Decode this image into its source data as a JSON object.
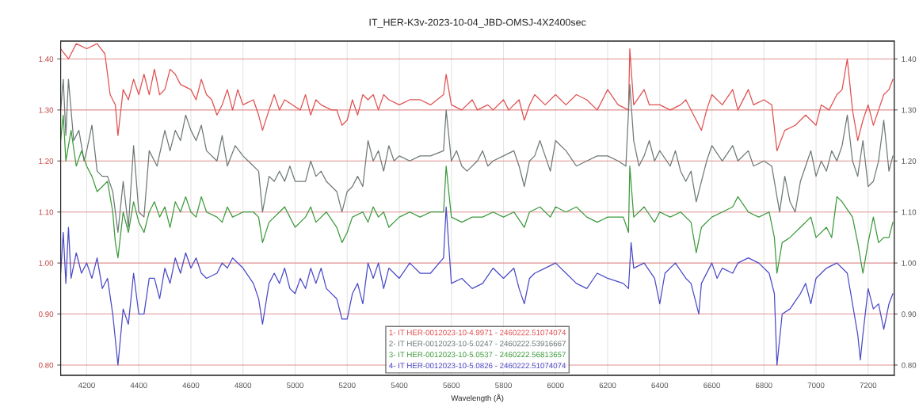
{
  "chart_data": {
    "type": "line",
    "title": "IT_HER-K3v-2023-10-04_JBD-OMSJ-4X2400sec",
    "xlabel": "Wavelength (Å)",
    "xlim": [
      4100,
      7300
    ],
    "xticks": [
      4200,
      4400,
      4600,
      4800,
      5000,
      5200,
      5400,
      5600,
      5800,
      6000,
      6200,
      6400,
      6600,
      6800,
      7000,
      7200
    ],
    "ylim": [
      0.78,
      1.435
    ],
    "yticks": [
      {
        "value": 0.8,
        "label": "0.80"
      },
      {
        "value": 0.9,
        "label": "0.90"
      },
      {
        "value": 1.0,
        "label": "1.00"
      },
      {
        "value": 1.1,
        "label": "1.10"
      },
      {
        "value": 1.2,
        "label": "1.20"
      },
      {
        "value": 1.3,
        "label": "1.30"
      },
      {
        "value": 1.4,
        "label": "1.40"
      }
    ],
    "y2lim": [
      0.78,
      1.435
    ],
    "y2ticks": [
      {
        "value": 0.8,
        "label": "0.80"
      },
      {
        "value": 0.9,
        "label": "0.90"
      },
      {
        "value": 1.0,
        "label": "1.00"
      },
      {
        "value": 1.1,
        "label": "1.10"
      },
      {
        "value": 1.2,
        "label": "1.20"
      },
      {
        "value": 1.3,
        "label": "1.30"
      },
      {
        "value": 1.4,
        "label": "1.40"
      }
    ],
    "grid": true,
    "legend": "bottom",
    "marker": "none",
    "line_style": "solid",
    "series": [
      {
        "name": "1- IT HER-0012023-10-4.9971 - 2460222.51074074",
        "color": "#e05050",
        "x": [
          4100,
          4130,
          4160,
          4200,
          4240,
          4270,
          4290,
          4310,
          4320,
          4340,
          4360,
          4380,
          4400,
          4420,
          4440,
          4460,
          4480,
          4500,
          4520,
          4540,
          4560,
          4600,
          4620,
          4640,
          4660,
          4680,
          4700,
          4720,
          4740,
          4760,
          4780,
          4800,
          4840,
          4860,
          4875,
          4900,
          4920,
          4940,
          4960,
          4990,
          5020,
          5040,
          5060,
          5080,
          5100,
          5140,
          5160,
          5180,
          5200,
          5220,
          5240,
          5260,
          5280,
          5300,
          5320,
          5340,
          5360,
          5400,
          5440,
          5480,
          5520,
          5570,
          5580,
          5600,
          5640,
          5680,
          5700,
          5740,
          5760,
          5800,
          5820,
          5860,
          5880,
          5900,
          5920,
          5960,
          6000,
          6040,
          6080,
          6120,
          6160,
          6200,
          6240,
          6280,
          6285,
          6300,
          6340,
          6360,
          6400,
          6440,
          6480,
          6500,
          6540,
          6560,
          6580,
          6600,
          6640,
          6680,
          6700,
          6740,
          6760,
          6800,
          6830,
          6850,
          6880,
          6920,
          6960,
          7000,
          7020,
          7050,
          7080,
          7100,
          7120,
          7140,
          7160,
          7180,
          7200,
          7220,
          7240,
          7260,
          7280,
          7295
        ],
        "values": [
          1.42,
          1.4,
          1.43,
          1.42,
          1.43,
          1.41,
          1.33,
          1.31,
          1.25,
          1.34,
          1.32,
          1.36,
          1.33,
          1.37,
          1.33,
          1.38,
          1.33,
          1.34,
          1.38,
          1.37,
          1.35,
          1.34,
          1.32,
          1.36,
          1.33,
          1.32,
          1.29,
          1.31,
          1.34,
          1.3,
          1.34,
          1.31,
          1.32,
          1.29,
          1.26,
          1.3,
          1.33,
          1.3,
          1.32,
          1.31,
          1.3,
          1.33,
          1.29,
          1.32,
          1.31,
          1.3,
          1.3,
          1.27,
          1.28,
          1.32,
          1.29,
          1.33,
          1.32,
          1.33,
          1.3,
          1.33,
          1.32,
          1.31,
          1.32,
          1.32,
          1.31,
          1.33,
          1.37,
          1.31,
          1.3,
          1.32,
          1.3,
          1.31,
          1.3,
          1.32,
          1.3,
          1.32,
          1.28,
          1.31,
          1.33,
          1.31,
          1.33,
          1.31,
          1.33,
          1.32,
          1.3,
          1.34,
          1.31,
          1.3,
          1.42,
          1.31,
          1.34,
          1.31,
          1.31,
          1.3,
          1.31,
          1.32,
          1.28,
          1.26,
          1.3,
          1.33,
          1.31,
          1.34,
          1.3,
          1.34,
          1.31,
          1.32,
          1.31,
          1.22,
          1.26,
          1.27,
          1.29,
          1.27,
          1.31,
          1.3,
          1.33,
          1.34,
          1.4,
          1.3,
          1.24,
          1.28,
          1.31,
          1.27,
          1.3,
          1.33,
          1.34,
          1.36
        ]
      },
      {
        "name": "2- IT HER-0012023-10-5.0247 - 2460222.53916667",
        "color": "#6e7878",
        "x": [
          4100,
          4110,
          4120,
          4130,
          4150,
          4170,
          4190,
          4200,
          4220,
          4240,
          4260,
          4280,
          4300,
          4320,
          4340,
          4360,
          4380,
          4400,
          4420,
          4440,
          4460,
          4470,
          4500,
          4520,
          4540,
          4560,
          4580,
          4600,
          4620,
          4640,
          4660,
          4700,
          4720,
          4740,
          4770,
          4800,
          4820,
          4860,
          4875,
          4900,
          4920,
          4940,
          4960,
          4980,
          5000,
          5040,
          5060,
          5080,
          5100,
          5120,
          5140,
          5160,
          5180,
          5200,
          5220,
          5240,
          5260,
          5280,
          5300,
          5320,
          5340,
          5360,
          5380,
          5400,
          5440,
          5480,
          5520,
          5570,
          5580,
          5600,
          5620,
          5640,
          5660,
          5700,
          5720,
          5740,
          5760,
          5800,
          5840,
          5860,
          5880,
          5900,
          5920,
          5940,
          5960,
          5980,
          6000,
          6040,
          6080,
          6120,
          6160,
          6200,
          6240,
          6270,
          6285,
          6300,
          6320,
          6340,
          6360,
          6380,
          6400,
          6440,
          6460,
          6480,
          6500,
          6520,
          6540,
          6560,
          6580,
          6600,
          6640,
          6680,
          6700,
          6740,
          6760,
          6800,
          6830,
          6860,
          6880,
          6900,
          6920,
          6940,
          6960,
          6980,
          7000,
          7020,
          7040,
          7060,
          7080,
          7100,
          7120,
          7140,
          7160,
          7180,
          7200,
          7220,
          7240,
          7260,
          7280,
          7295
        ],
        "values": [
          1.3,
          1.36,
          1.25,
          1.36,
          1.24,
          1.26,
          1.2,
          1.22,
          1.27,
          1.18,
          1.17,
          1.17,
          1.14,
          1.06,
          1.16,
          1.07,
          1.23,
          1.1,
          1.09,
          1.22,
          1.2,
          1.19,
          1.26,
          1.22,
          1.26,
          1.24,
          1.29,
          1.26,
          1.24,
          1.27,
          1.22,
          1.2,
          1.25,
          1.19,
          1.23,
          1.21,
          1.2,
          1.18,
          1.1,
          1.17,
          1.16,
          1.18,
          1.16,
          1.19,
          1.16,
          1.16,
          1.2,
          1.17,
          1.18,
          1.16,
          1.15,
          1.14,
          1.1,
          1.14,
          1.15,
          1.17,
          1.15,
          1.24,
          1.2,
          1.22,
          1.18,
          1.23,
          1.2,
          1.21,
          1.2,
          1.21,
          1.21,
          1.22,
          1.3,
          1.2,
          1.22,
          1.19,
          1.18,
          1.2,
          1.22,
          1.19,
          1.2,
          1.21,
          1.22,
          1.19,
          1.15,
          1.2,
          1.21,
          1.24,
          1.21,
          1.18,
          1.24,
          1.22,
          1.19,
          1.2,
          1.21,
          1.21,
          1.2,
          1.19,
          1.35,
          1.24,
          1.19,
          1.21,
          1.24,
          1.2,
          1.22,
          1.19,
          1.22,
          1.18,
          1.16,
          1.18,
          1.12,
          1.16,
          1.2,
          1.23,
          1.2,
          1.23,
          1.2,
          1.22,
          1.19,
          1.2,
          1.19,
          1.1,
          1.17,
          1.12,
          1.1,
          1.16,
          1.19,
          1.22,
          1.17,
          1.2,
          1.18,
          1.22,
          1.2,
          1.23,
          1.29,
          1.2,
          1.17,
          1.24,
          1.15,
          1.16,
          1.2,
          1.28,
          1.18,
          1.21
        ]
      },
      {
        "name": "3- IT HER-0012023-10-5.0537 - 2460222.56813657",
        "color": "#3c9a3c",
        "x": [
          4100,
          4110,
          4120,
          4140,
          4160,
          4180,
          4200,
          4220,
          4240,
          4260,
          4280,
          4300,
          4310,
          4320,
          4340,
          4360,
          4380,
          4400,
          4420,
          4440,
          4460,
          4480,
          4500,
          4520,
          4540,
          4560,
          4580,
          4600,
          4620,
          4640,
          4660,
          4700,
          4720,
          4740,
          4760,
          4800,
          4840,
          4860,
          4875,
          4900,
          4940,
          4960,
          4980,
          5000,
          5040,
          5060,
          5080,
          5120,
          5160,
          5180,
          5200,
          5220,
          5260,
          5280,
          5300,
          5320,
          5340,
          5360,
          5400,
          5440,
          5480,
          5520,
          5570,
          5580,
          5600,
          5640,
          5680,
          5720,
          5760,
          5800,
          5840,
          5880,
          5900,
          5940,
          5980,
          6000,
          6040,
          6080,
          6120,
          6160,
          6200,
          6260,
          6280,
          6285,
          6300,
          6340,
          6380,
          6400,
          6440,
          6480,
          6520,
          6540,
          6560,
          6600,
          6640,
          6680,
          6700,
          6740,
          6780,
          6820,
          6840,
          6850,
          6870,
          6900,
          6940,
          6980,
          7000,
          7040,
          7060,
          7080,
          7100,
          7140,
          7160,
          7180,
          7200,
          7220,
          7240,
          7260,
          7280,
          7295
        ],
        "values": [
          1.24,
          1.29,
          1.2,
          1.26,
          1.19,
          1.22,
          1.19,
          1.17,
          1.14,
          1.15,
          1.16,
          1.1,
          1.04,
          1.01,
          1.1,
          1.06,
          1.12,
          1.08,
          1.06,
          1.1,
          1.12,
          1.09,
          1.11,
          1.07,
          1.12,
          1.1,
          1.13,
          1.1,
          1.09,
          1.13,
          1.1,
          1.09,
          1.08,
          1.11,
          1.09,
          1.1,
          1.1,
          1.09,
          1.04,
          1.08,
          1.1,
          1.11,
          1.09,
          1.07,
          1.09,
          1.11,
          1.08,
          1.1,
          1.07,
          1.04,
          1.06,
          1.09,
          1.1,
          1.08,
          1.11,
          1.09,
          1.1,
          1.07,
          1.09,
          1.1,
          1.09,
          1.1,
          1.1,
          1.19,
          1.09,
          1.08,
          1.09,
          1.09,
          1.1,
          1.09,
          1.1,
          1.07,
          1.1,
          1.11,
          1.09,
          1.11,
          1.1,
          1.11,
          1.09,
          1.08,
          1.09,
          1.09,
          1.06,
          1.19,
          1.09,
          1.11,
          1.08,
          1.1,
          1.09,
          1.1,
          1.08,
          1.02,
          1.07,
          1.09,
          1.1,
          1.11,
          1.13,
          1.1,
          1.09,
          1.1,
          1.05,
          0.98,
          1.04,
          1.05,
          1.07,
          1.09,
          1.05,
          1.07,
          1.05,
          1.13,
          1.12,
          1.09,
          1.04,
          0.98,
          1.04,
          1.09,
          1.04,
          1.05,
          1.05,
          1.08
        ]
      },
      {
        "name": "4- IT HER-0012023-10-5.0826 - 2460222.51074074",
        "color": "#4a4ac8",
        "x": [
          4100,
          4110,
          4120,
          4130,
          4140,
          4160,
          4180,
          4200,
          4220,
          4240,
          4260,
          4280,
          4300,
          4310,
          4320,
          4340,
          4360,
          4380,
          4400,
          4420,
          4440,
          4460,
          4480,
          4500,
          4520,
          4540,
          4560,
          4580,
          4600,
          4620,
          4640,
          4660,
          4700,
          4720,
          4740,
          4760,
          4800,
          4840,
          4860,
          4875,
          4900,
          4920,
          4940,
          4960,
          4980,
          5000,
          5020,
          5040,
          5060,
          5080,
          5100,
          5120,
          5160,
          5180,
          5200,
          5220,
          5240,
          5260,
          5280,
          5300,
          5320,
          5340,
          5360,
          5400,
          5440,
          5480,
          5520,
          5570,
          5580,
          5600,
          5640,
          5680,
          5720,
          5760,
          5800,
          5840,
          5860,
          5880,
          5900,
          5920,
          5960,
          6000,
          6040,
          6080,
          6120,
          6160,
          6200,
          6260,
          6280,
          6290,
          6300,
          6340,
          6380,
          6400,
          6420,
          6460,
          6500,
          6520,
          6540,
          6550,
          6560,
          6600,
          6620,
          6640,
          6680,
          6700,
          6740,
          6780,
          6820,
          6840,
          6850,
          6870,
          6900,
          6940,
          6960,
          6980,
          7000,
          7040,
          7080,
          7100,
          7120,
          7160,
          7170,
          7180,
          7200,
          7220,
          7240,
          7260,
          7280,
          7295
        ],
        "values": [
          0.98,
          1.06,
          0.96,
          1.07,
          0.97,
          1.02,
          0.98,
          1.0,
          0.97,
          1.01,
          0.95,
          0.97,
          0.9,
          0.85,
          0.8,
          0.91,
          0.88,
          0.98,
          0.9,
          0.9,
          0.97,
          0.97,
          0.93,
          0.99,
          0.96,
          1.01,
          0.98,
          1.02,
          0.99,
          1.01,
          0.98,
          0.97,
          0.98,
          1.0,
          0.99,
          1.01,
          0.99,
          0.96,
          0.93,
          0.88,
          0.96,
          0.98,
          0.96,
          0.99,
          0.95,
          0.94,
          0.97,
          0.95,
          0.99,
          0.96,
          0.99,
          0.95,
          0.93,
          0.89,
          0.89,
          0.94,
          0.96,
          0.92,
          1.0,
          0.97,
          1.0,
          0.95,
          0.99,
          0.97,
          1.0,
          0.98,
          0.98,
          1.01,
          1.11,
          0.96,
          0.97,
          0.95,
          0.96,
          0.99,
          0.97,
          0.99,
          0.95,
          0.92,
          0.97,
          0.98,
          0.99,
          1.0,
          0.98,
          0.96,
          0.95,
          0.98,
          0.97,
          0.96,
          0.95,
          1.04,
          0.99,
          1.0,
          0.97,
          0.92,
          0.98,
          1.0,
          0.97,
          0.96,
          0.92,
          0.9,
          0.96,
          1.0,
          0.97,
          0.99,
          0.98,
          1.0,
          1.01,
          1.0,
          0.98,
          0.94,
          0.8,
          0.9,
          0.91,
          0.94,
          0.96,
          0.92,
          0.97,
          0.99,
          1.0,
          0.99,
          0.98,
          0.86,
          0.81,
          0.86,
          0.95,
          0.91,
          0.92,
          0.87,
          0.92,
          0.94
        ]
      }
    ]
  }
}
